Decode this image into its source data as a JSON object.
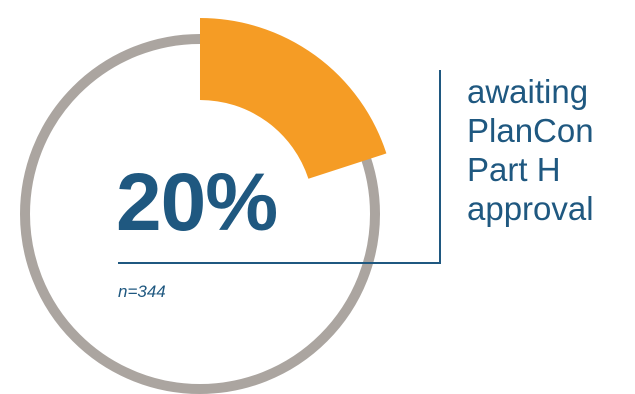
{
  "chart_data": {
    "type": "pie",
    "style": "donut-progress",
    "value_percent": 20,
    "value_label": "20%",
    "sample_label": "n=344",
    "description_lines": [
      "awaiting",
      "PlanCon",
      "Part H",
      "approval"
    ],
    "slices": [
      {
        "value": 20,
        "color": "#f59c25"
      },
      {
        "value": 80,
        "color": "#aba5a0"
      }
    ]
  },
  "colors": {
    "accent": "#f59c25",
    "track": "#aba5a0",
    "text_primary": "#1f5880",
    "text_secondary": "#1f5880",
    "callout_line": "#1f5880"
  }
}
